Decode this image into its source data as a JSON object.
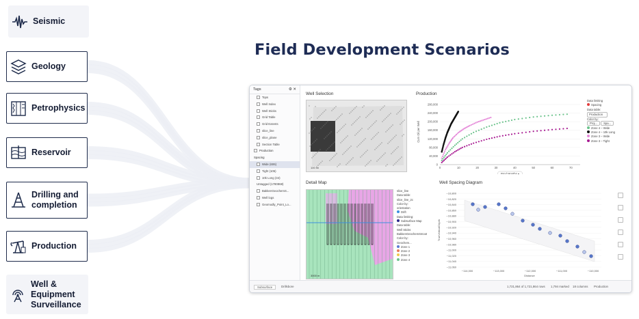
{
  "title": "Field Development Scenarios",
  "categories": [
    {
      "id": "seismic",
      "label": "Seismic",
      "icon": "seismic-wave-icon",
      "style": "soft"
    },
    {
      "id": "geology",
      "label": "Geology",
      "icon": "layers-icon",
      "style": "outline"
    },
    {
      "id": "petrophysics",
      "label": "Petrophysics",
      "icon": "well-log-icon",
      "style": "outline"
    },
    {
      "id": "reservoir",
      "label": "Reservoir",
      "icon": "reservoir-icon",
      "style": "outline"
    },
    {
      "id": "drilling",
      "label": "Drilling and\ncompletion",
      "icon": "drilling-rig-icon",
      "style": "outline"
    },
    {
      "id": "production",
      "label": "Production",
      "icon": "oil-pump-icon",
      "style": "outline"
    },
    {
      "id": "surveillance",
      "label": "Well &\nEquipment\nSurveillance",
      "icon": "monitoring-icon",
      "style": "soft"
    }
  ],
  "app": {
    "tags_panel": {
      "title": "Tags",
      "items": [
        "Tops",
        "Well Index",
        "Well Sticks",
        "Grid Table",
        "Grid Extents",
        "slice_line",
        "slice_plane",
        "Section Table"
      ],
      "group_production": "Production",
      "group_spacing": "Spacing",
      "spacing_items": [
        {
          "label": "Wide (606)",
          "selected": true
        },
        {
          "label": "Tight (105)",
          "selected": false
        },
        {
          "label": "10k Long (34)",
          "selected": false
        }
      ],
      "untagged": "Untagged (1780868)",
      "more_items": [
        "BakkenGeochemS...",
        "Well logs",
        "Geomodly_Point_Lo..."
      ]
    },
    "well_selection": {
      "title": "Well Selection",
      "scale": "100 mi"
    },
    "production": {
      "title": "Production",
      "ylabel": "Cum Oil per Well",
      "x_selector": "Prod Months",
      "legend_title": "Data limiting",
      "legend_item": "Spacing",
      "data_table_label": "Data table:",
      "data_table_value": "Production",
      "color_by_label": "Color by:",
      "color_by_a": "Proj...",
      "color_by_b": "Spa...",
      "series_legend": [
        {
          "name": "Zone 4 – Wide",
          "color": "#6cc38c"
        },
        {
          "name": "Zone 4 – 10k Long",
          "color": "#111111"
        },
        {
          "name": "Zone 3 – Wide",
          "color": "#e58ad9"
        },
        {
          "name": "Zone 3 – Tight",
          "color": "#a81b92"
        }
      ]
    },
    "detail_map": {
      "title": "Detail Map",
      "scale": "3000 m",
      "legend": [
        "slice_line",
        "Data table:",
        "slice_line_2c",
        "Color by:",
        "orientation",
        "Drift",
        "Data limiting:",
        "Subsurface Map",
        "Data table:",
        "Well Sticks",
        "BakkenGeochemSmooth",
        "Color by:",
        "Geochem...",
        "Zone 1",
        "Zone 2",
        "Zone 3",
        "Zone 4"
      ]
    },
    "spacing_diagram": {
      "title": "Well Spacing Diagram",
      "ylabel": "TrueVerticalDepth",
      "xlabel": "Distance",
      "y_ticks": [
        "−10,800",
        "−10,820",
        "−10,840",
        "−10,860",
        "−10,880",
        "−10,900",
        "−10,920",
        "−10,940",
        "−10,960",
        "−10,980",
        "−11,000",
        "−11,020",
        "−11,040",
        "−11,060"
      ],
      "x_ticks": [
        "−114,000",
        "−113,000",
        "−112,000",
        "−111,000",
        "−110,000"
      ]
    },
    "status": {
      "tab1": "Subsurface",
      "tab2": "Drillsbore",
      "rows": "1,721,864 of 1,721,864 rows",
      "marked": "1,794 marked",
      "columns": "18 columns",
      "table": "Production"
    }
  },
  "chart_data": {
    "type": "scatter",
    "title": "Production",
    "ylabel": "Cum Oil per Well",
    "xlabel": "Prod Months",
    "x_ticks": [
      0,
      10,
      20,
      30,
      40,
      50,
      60,
      70
    ],
    "y_ticks": [
      0,
      40000,
      80000,
      120000,
      160000,
      200000,
      240000,
      280000
    ],
    "ylim": [
      0,
      280000
    ],
    "xlim": [
      0,
      75
    ],
    "series": [
      {
        "name": "Zone 4 – 10k Long",
        "color": "#111111",
        "x": [
          1,
          2,
          3,
          4,
          5,
          6,
          7,
          8,
          9,
          10
        ],
        "y": [
          60000,
          95000,
          125000,
          150000,
          170000,
          190000,
          205000,
          220000,
          235000,
          250000
        ]
      },
      {
        "name": "Zone 3 – Wide",
        "color": "#e58ad9",
        "x": [
          1,
          3,
          5,
          7,
          10,
          13,
          16,
          20,
          24,
          28
        ],
        "y": [
          30000,
          70000,
          100000,
          125000,
          150000,
          168000,
          182000,
          198000,
          210000,
          222000
        ]
      },
      {
        "name": "Zone 4 – Wide",
        "color": "#6cc38c",
        "x": [
          1,
          4,
          8,
          12,
          18,
          25,
          32,
          40,
          50,
          60,
          70
        ],
        "y": [
          20000,
          55000,
          90000,
          120000,
          150000,
          175000,
          195000,
          210000,
          222000,
          230000,
          236000
        ]
      },
      {
        "name": "Zone 3 – Tight",
        "color": "#a81b92",
        "x": [
          1,
          4,
          8,
          12,
          18,
          25,
          32,
          40,
          50,
          60,
          70
        ],
        "y": [
          10000,
          35000,
          60000,
          80000,
          100000,
          118000,
          132000,
          144000,
          155000,
          163000,
          170000
        ]
      }
    ]
  }
}
